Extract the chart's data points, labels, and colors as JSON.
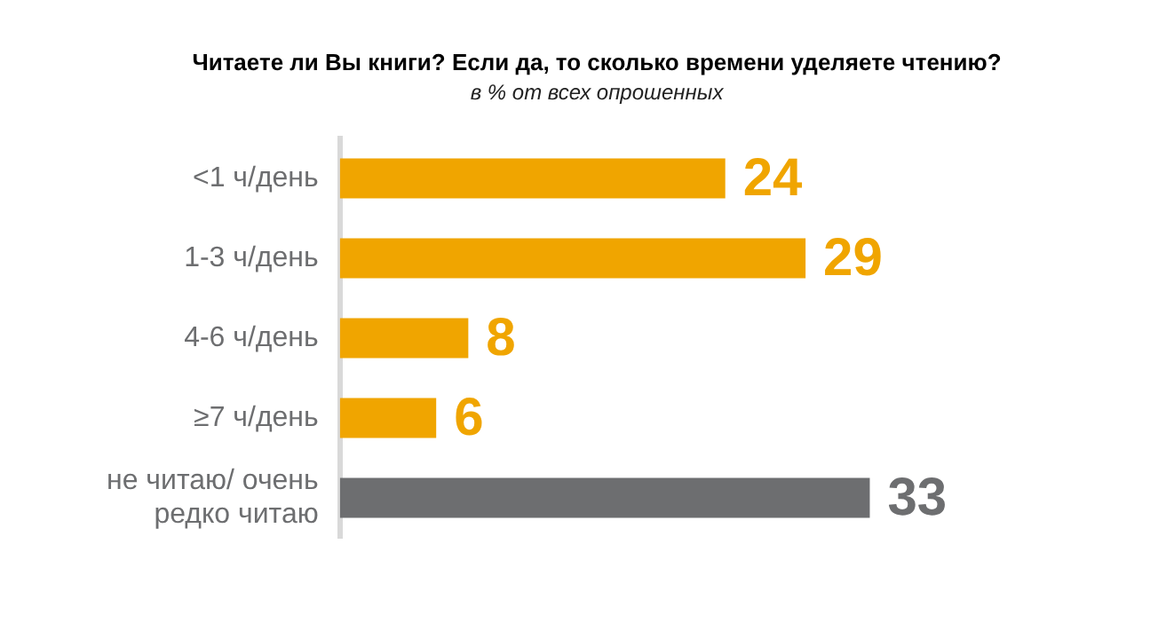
{
  "chart_data": {
    "type": "bar",
    "orientation": "horizontal",
    "title": "Читаете ли Вы книги? Если да, то сколько времени уделяете чтению?",
    "subtitle": "в % от всех опрошенных",
    "categories": [
      "<1 ч/день",
      "1-3 ч/день",
      "4-6 ч/день",
      "≥7 ч/день",
      "не читаю/ очень редко читаю"
    ],
    "values": [
      24,
      29,
      8,
      6,
      33
    ],
    "colors": [
      "#f0a500",
      "#f0a500",
      "#f0a500",
      "#f0a500",
      "#6d6e70"
    ],
    "data_labels": true
  }
}
